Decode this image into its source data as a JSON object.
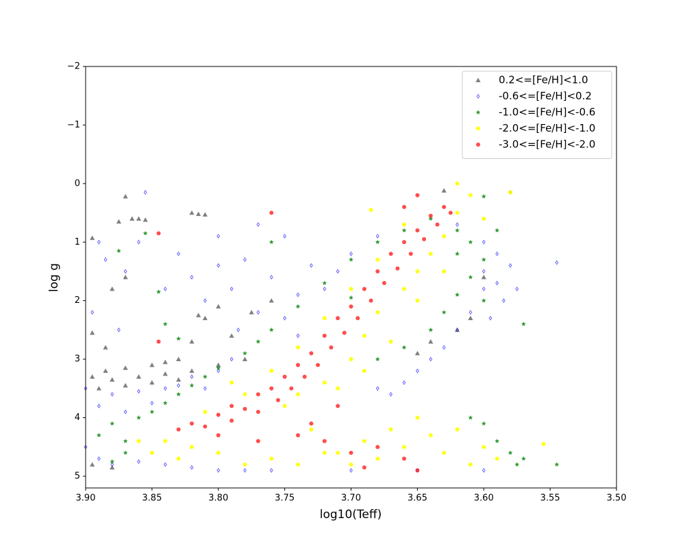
{
  "chart_data": {
    "type": "scatter",
    "x_label": "log10(Teff)",
    "y_label": "log g",
    "xlim": [
      3.9,
      3.5
    ],
    "xticks": [
      {
        "value": 3.9,
        "label": "3.90"
      },
      {
        "value": 3.85,
        "label": "3.85"
      },
      {
        "value": 3.8,
        "label": "3.80"
      },
      {
        "value": 3.75,
        "label": "3.75"
      },
      {
        "value": 3.7,
        "label": "3.70"
      },
      {
        "value": 3.65,
        "label": "3.65"
      },
      {
        "value": 3.6,
        "label": "3.60"
      },
      {
        "value": 3.55,
        "label": "3.55"
      },
      {
        "value": 3.5,
        "label": "3.50"
      }
    ],
    "ylim": [
      5.2,
      -2
    ],
    "yticks": [
      {
        "value": -2,
        "label": "−2"
      },
      {
        "value": -1,
        "label": "−1"
      },
      0,
      1,
      2,
      3,
      4,
      5
    ],
    "legend": "upper right",
    "series": [
      {
        "name": "0.2<=[Fe/H]<1.0",
        "color": "#000000",
        "marker": "triangle",
        "alpha": 0.5,
        "x": [
          3.87,
          3.875,
          3.865,
          3.86,
          3.855,
          3.82,
          3.815,
          3.81,
          3.895,
          3.88,
          3.87,
          3.815,
          3.81,
          3.8,
          3.82,
          3.83,
          3.84,
          3.85,
          3.87,
          3.885,
          3.895,
          3.88,
          3.86,
          3.84,
          3.82,
          3.8,
          3.78,
          3.79,
          3.775,
          3.76,
          3.895,
          3.885,
          3.89,
          3.87,
          3.85,
          3.83,
          3.65,
          3.64,
          3.62,
          3.61,
          3.63,
          3.895,
          3.88,
          3.6
        ],
        "y": [
          0.22,
          0.65,
          0.6,
          0.6,
          0.62,
          0.5,
          0.52,
          0.53,
          0.93,
          1.8,
          1.6,
          2.25,
          2.3,
          2.1,
          2.7,
          3.0,
          3.05,
          3.1,
          3.15,
          3.2,
          3.3,
          3.35,
          3.3,
          3.25,
          3.2,
          3.1,
          3.0,
          2.6,
          2.2,
          2.0,
          2.55,
          2.8,
          3.5,
          3.45,
          3.4,
          3.35,
          2.9,
          2.7,
          2.5,
          2.3,
          0.12,
          4.8,
          4.85,
          1.6
        ]
      },
      {
        "name": "-0.6<=[Fe/H]<0.2",
        "color": "#0000ff",
        "marker": "diamond",
        "alpha": 0.6,
        "x": [
          3.9,
          3.89,
          3.88,
          3.87,
          3.86,
          3.85,
          3.84,
          3.83,
          3.82,
          3.81,
          3.8,
          3.79,
          3.9,
          3.89,
          3.88,
          3.86,
          3.84,
          3.82,
          3.8,
          3.78,
          3.76,
          3.7,
          3.65,
          3.6,
          3.6,
          3.59,
          3.585,
          3.59,
          3.6,
          3.61,
          3.62,
          3.63,
          3.64,
          3.65,
          3.66,
          3.67,
          3.68,
          3.58,
          3.575,
          3.62,
          3.89,
          3.885,
          3.87,
          3.86,
          3.855,
          3.84,
          3.83,
          3.82,
          3.81,
          3.8,
          3.79,
          3.78,
          3.77,
          3.76,
          3.75,
          3.74,
          3.73,
          3.72,
          3.71,
          3.7,
          3.68,
          3.895,
          3.875,
          3.77,
          3.8,
          3.785,
          3.75,
          3.74,
          3.545,
          3.6,
          3.595
        ],
        "y": [
          3.5,
          3.8,
          3.6,
          3.9,
          3.55,
          3.75,
          3.5,
          3.45,
          3.3,
          3.5,
          3.2,
          3.0,
          4.5,
          4.7,
          4.8,
          4.75,
          4.8,
          4.85,
          4.9,
          4.9,
          4.9,
          4.9,
          4.9,
          4.9,
          1.5,
          1.7,
          2.0,
          1.2,
          1.0,
          2.2,
          2.5,
          2.8,
          3.0,
          3.2,
          3.4,
          3.6,
          3.5,
          1.4,
          1.8,
          0.7,
          1.0,
          1.3,
          1.5,
          1.0,
          0.15,
          1.8,
          1.2,
          1.6,
          2.0,
          1.4,
          1.8,
          1.3,
          2.2,
          1.6,
          0.9,
          1.9,
          1.4,
          1.8,
          1.5,
          1.2,
          0.9,
          2.2,
          2.5,
          0.7,
          0.9,
          2.5,
          2.3,
          2.6,
          1.35,
          1.8,
          2.3
        ]
      },
      {
        "name": "-1.0<=[Fe/H]<-0.6",
        "color": "#008000",
        "marker": "star",
        "alpha": 0.8,
        "x": [
          3.89,
          3.88,
          3.87,
          3.86,
          3.85,
          3.84,
          3.83,
          3.82,
          3.81,
          3.8,
          3.78,
          3.77,
          3.76,
          3.74,
          3.72,
          3.7,
          3.68,
          3.66,
          3.64,
          3.62,
          3.61,
          3.6,
          3.61,
          3.62,
          3.63,
          3.64,
          3.66,
          3.68,
          3.62,
          3.6,
          3.59,
          3.58,
          3.57,
          3.575,
          3.59,
          3.6,
          3.61,
          3.57,
          3.58,
          3.6,
          3.545,
          3.845,
          3.855,
          3.875,
          3.84,
          3.83,
          3.76,
          3.7,
          3.88,
          3.87
        ],
        "y": [
          4.3,
          4.1,
          4.4,
          4.0,
          3.9,
          3.75,
          3.6,
          3.45,
          3.3,
          3.15,
          2.9,
          2.7,
          2.5,
          2.1,
          1.7,
          1.3,
          1.0,
          0.8,
          0.6,
          0.8,
          1.0,
          1.3,
          1.6,
          1.9,
          2.2,
          2.5,
          2.8,
          3.0,
          1.2,
          2.0,
          0.8,
          4.6,
          4.7,
          4.8,
          4.4,
          4.1,
          4.0,
          2.4,
          0.15,
          0.22,
          4.8,
          1.85,
          0.85,
          1.15,
          2.4,
          2.65,
          1.0,
          1.95,
          4.75,
          4.6
        ]
      },
      {
        "name": "-2.0<=[Fe/H]<-1.0",
        "color": "#ffff00",
        "marker": "circle",
        "alpha": 0.9,
        "x": [
          3.86,
          3.85,
          3.84,
          3.83,
          3.82,
          3.8,
          3.78,
          3.76,
          3.74,
          3.72,
          3.7,
          3.68,
          3.66,
          3.64,
          3.62,
          3.6,
          3.59,
          3.61,
          3.63,
          3.65,
          3.67,
          3.69,
          3.71,
          3.73,
          3.75,
          3.74,
          3.72,
          3.7,
          3.69,
          3.68,
          3.66,
          3.65,
          3.64,
          3.63,
          3.62,
          3.61,
          3.62,
          3.6,
          3.63,
          3.65,
          3.67,
          3.69,
          3.71,
          3.78,
          3.76,
          3.74,
          3.72,
          3.7,
          3.68,
          3.66,
          3.81,
          3.79,
          3.58,
          3.555,
          3.685
        ],
        "y": [
          4.4,
          4.6,
          4.4,
          4.7,
          4.5,
          4.6,
          4.8,
          4.7,
          4.8,
          4.6,
          4.8,
          4.7,
          4.5,
          4.3,
          4.2,
          4.5,
          4.7,
          4.8,
          4.6,
          4.0,
          4.2,
          4.4,
          4.6,
          4.2,
          3.8,
          3.6,
          3.4,
          3.0,
          2.6,
          2.2,
          1.8,
          1.5,
          1.2,
          0.9,
          0.5,
          0.2,
          0.0,
          0.6,
          1.5,
          2.0,
          2.7,
          3.2,
          3.5,
          3.6,
          3.2,
          2.8,
          2.3,
          1.8,
          1.3,
          0.7,
          3.9,
          3.4,
          0.15,
          4.45,
          0.45
        ]
      },
      {
        "name": "-3.0<=[Fe/H]<-2.0",
        "color": "#ff0000",
        "marker": "circle",
        "alpha": 0.7,
        "x": [
          3.83,
          3.82,
          3.81,
          3.8,
          3.79,
          3.79,
          3.78,
          3.77,
          3.77,
          3.76,
          3.755,
          3.75,
          3.745,
          3.74,
          3.735,
          3.73,
          3.725,
          3.72,
          3.715,
          3.71,
          3.705,
          3.7,
          3.695,
          3.69,
          3.685,
          3.68,
          3.675,
          3.67,
          3.665,
          3.66,
          3.655,
          3.65,
          3.645,
          3.64,
          3.635,
          3.63,
          3.625,
          3.66,
          3.65,
          3.76,
          3.845,
          3.845,
          3.7,
          3.68,
          3.66,
          3.72,
          3.74,
          3.69,
          3.65,
          3.77,
          3.8,
          3.73,
          3.71
        ],
        "y": [
          4.2,
          4.1,
          4.15,
          3.95,
          4.05,
          3.8,
          3.85,
          3.6,
          3.9,
          3.5,
          3.7,
          3.3,
          3.5,
          3.1,
          3.3,
          2.9,
          3.1,
          2.6,
          2.8,
          2.3,
          2.55,
          2.1,
          2.3,
          1.8,
          2.0,
          1.5,
          1.7,
          1.2,
          1.45,
          1.0,
          1.2,
          0.8,
          0.95,
          0.55,
          0.7,
          0.4,
          0.5,
          0.4,
          0.2,
          0.5,
          0.85,
          2.7,
          4.6,
          4.5,
          4.7,
          4.4,
          4.3,
          4.85,
          4.9,
          4.4,
          4.3,
          4.1,
          3.8
        ]
      }
    ]
  }
}
